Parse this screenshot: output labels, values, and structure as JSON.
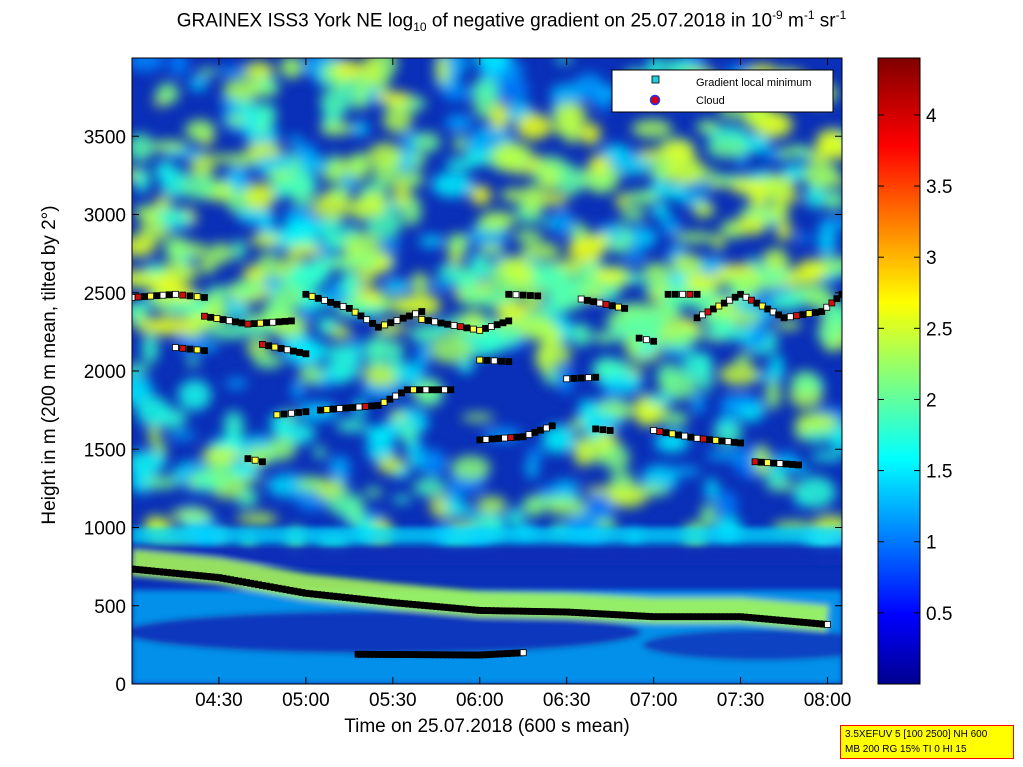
{
  "title": {
    "main": "GRAINEX ISS3 York NE log",
    "sub": "10",
    "mid": " of negative gradient on 25.07.2018 in 10",
    "sup1": "-9",
    "mid2": " m",
    "sup2": "-1",
    "mid3": " sr",
    "sup3": "-1"
  },
  "chart_data": {
    "type": "heatmap",
    "xlabel": "Time on 25.07.2018 (600 s mean)",
    "ylabel": "Height in m (200 m mean, tilted by 2°)",
    "xlim": [
      "04:00",
      "08:05"
    ],
    "ylim": [
      0,
      4000
    ],
    "x_ticks": [
      "04:30",
      "05:00",
      "05:30",
      "06:00",
      "06:30",
      "07:00",
      "07:30",
      "08:00"
    ],
    "y_ticks": [
      0,
      500,
      1000,
      1500,
      2000,
      2500,
      3000,
      3500
    ],
    "colorbar": {
      "range": [
        0,
        4.4
      ],
      "ticks": [
        "0.5",
        "1",
        "1.5",
        "2",
        "2.5",
        "3",
        "3.5",
        "4"
      ],
      "colormap": "jet"
    },
    "legend": {
      "position": "top-right",
      "entries": [
        {
          "label": "Gradient local minimum",
          "marker": "square",
          "color": "#1fd0d8"
        },
        {
          "label": "Cloud",
          "marker": "circle",
          "color": "#d00010",
          "edge": "#2030ff"
        }
      ]
    },
    "bands": [
      {
        "name": "low-bright",
        "start": 740,
        "end": 370,
        "value": 2.2
      },
      {
        "name": "mid-layer",
        "start": 900,
        "end": 950,
        "value": 1.6
      }
    ],
    "marker_tracks": [
      {
        "id": "ground-track",
        "points": [
          [
            "04:00",
            735
          ],
          [
            "04:30",
            680
          ],
          [
            "05:00",
            580
          ],
          [
            "05:30",
            520
          ],
          [
            "06:00",
            470
          ],
          [
            "06:30",
            460
          ],
          [
            "07:00",
            430
          ],
          [
            "07:30",
            430
          ],
          [
            "08:00",
            380
          ]
        ],
        "fill": "#000000"
      },
      {
        "id": "low-track",
        "points": [
          [
            "05:18",
            190
          ],
          [
            "06:00",
            185
          ],
          [
            "06:15",
            200
          ]
        ],
        "fill": "#000000"
      },
      {
        "id": "top-track-1",
        "points": [
          [
            "04:00",
            2470
          ],
          [
            "04:15",
            2490
          ],
          [
            "04:25",
            2470
          ]
        ],
        "fill": "#000000"
      },
      {
        "id": "top-track-2",
        "points": [
          [
            "04:25",
            2350
          ],
          [
            "04:40",
            2300
          ],
          [
            "04:55",
            2320
          ]
        ],
        "fill": "#000000"
      },
      {
        "id": "top-track-3",
        "points": [
          [
            "05:00",
            2490
          ],
          [
            "05:15",
            2400
          ],
          [
            "05:25",
            2280
          ],
          [
            "05:40",
            2380
          ]
        ],
        "fill": "#000000"
      },
      {
        "id": "top-track-4",
        "points": [
          [
            "05:40",
            2330
          ],
          [
            "06:00",
            2260
          ],
          [
            "06:10",
            2320
          ]
        ],
        "fill": "#000000"
      },
      {
        "id": "top-track-5",
        "points": [
          [
            "06:10",
            2490
          ],
          [
            "06:20",
            2480
          ]
        ],
        "fill": "#000000"
      },
      {
        "id": "top-track-6",
        "points": [
          [
            "06:35",
            2460
          ],
          [
            "06:50",
            2400
          ]
        ],
        "fill": "#000000"
      },
      {
        "id": "top-track-7",
        "points": [
          [
            "07:05",
            2490
          ],
          [
            "07:15",
            2490
          ]
        ],
        "fill": "#000000"
      },
      {
        "id": "top-track-8",
        "points": [
          [
            "07:15",
            2340
          ],
          [
            "07:30",
            2490
          ],
          [
            "07:45",
            2340
          ],
          [
            "07:58",
            2380
          ],
          [
            "08:05",
            2490
          ]
        ],
        "fill": "#000000"
      },
      {
        "id": "mid-track-1",
        "points": [
          [
            "04:15",
            2150
          ],
          [
            "04:25",
            2130
          ]
        ],
        "fill": "#000000"
      },
      {
        "id": "mid-track-2",
        "points": [
          [
            "04:45",
            2170
          ],
          [
            "05:00",
            2110
          ]
        ],
        "fill": "#000000"
      },
      {
        "id": "mid-track-3",
        "points": [
          [
            "05:05",
            1750
          ],
          [
            "05:25",
            1780
          ],
          [
            "05:35",
            1880
          ],
          [
            "05:50",
            1880
          ]
        ],
        "fill": "#000000"
      },
      {
        "id": "mid-track-4",
        "points": [
          [
            "06:00",
            2070
          ],
          [
            "06:10",
            2060
          ]
        ],
        "fill": "#000000"
      },
      {
        "id": "mid-track-5",
        "points": [
          [
            "06:00",
            1560
          ],
          [
            "06:15",
            1580
          ],
          [
            "06:25",
            1650
          ]
        ],
        "fill": "#000000"
      },
      {
        "id": "mid-track-6",
        "points": [
          [
            "06:30",
            1950
          ],
          [
            "06:40",
            1960
          ]
        ],
        "fill": "#000000"
      },
      {
        "id": "mid-track-7",
        "points": [
          [
            "06:40",
            1630
          ],
          [
            "06:45",
            1620
          ]
        ],
        "fill": "#000000"
      },
      {
        "id": "mid-track-8",
        "points": [
          [
            "06:55",
            2210
          ],
          [
            "07:00",
            2190
          ]
        ],
        "fill": "#000000"
      },
      {
        "id": "mid-track-9",
        "points": [
          [
            "07:00",
            1620
          ],
          [
            "07:15",
            1570
          ],
          [
            "07:30",
            1540
          ]
        ],
        "fill": "#000000"
      },
      {
        "id": "mid-track-10",
        "points": [
          [
            "07:35",
            1420
          ],
          [
            "07:50",
            1400
          ]
        ],
        "fill": "#000000"
      },
      {
        "id": "mid-track-11",
        "points": [
          [
            "04:40",
            1440
          ],
          [
            "04:45",
            1420
          ]
        ],
        "fill": "#000000"
      },
      {
        "id": "mid-track-12",
        "points": [
          [
            "04:50",
            1720
          ],
          [
            "05:00",
            1740
          ]
        ],
        "fill": "#000000"
      }
    ]
  }
}
